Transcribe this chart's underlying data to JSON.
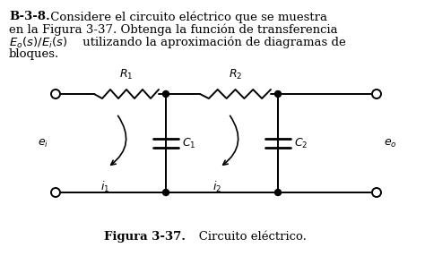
{
  "bg_color": "#ffffff",
  "line_color": "#000000",
  "text_color": "#000000",
  "bold_prefix": "B-3-8.",
  "line1_rest": " Considere el circuito eléctrico que se muestra",
  "line2": "en la Figura 3-37. Obtenga la función de transferencia",
  "line3_italic": "E_o(s)/E_i(s)",
  "line3_rest": " utilizando la aproximación de diagramas de",
  "line4": "bloques.",
  "caption_bold": "Figura 3-37.",
  "caption_normal": "   Circuito eléctrico.",
  "fontsize": 9.5,
  "fontsize_circ": 9,
  "fontsize_caption": 9.5
}
